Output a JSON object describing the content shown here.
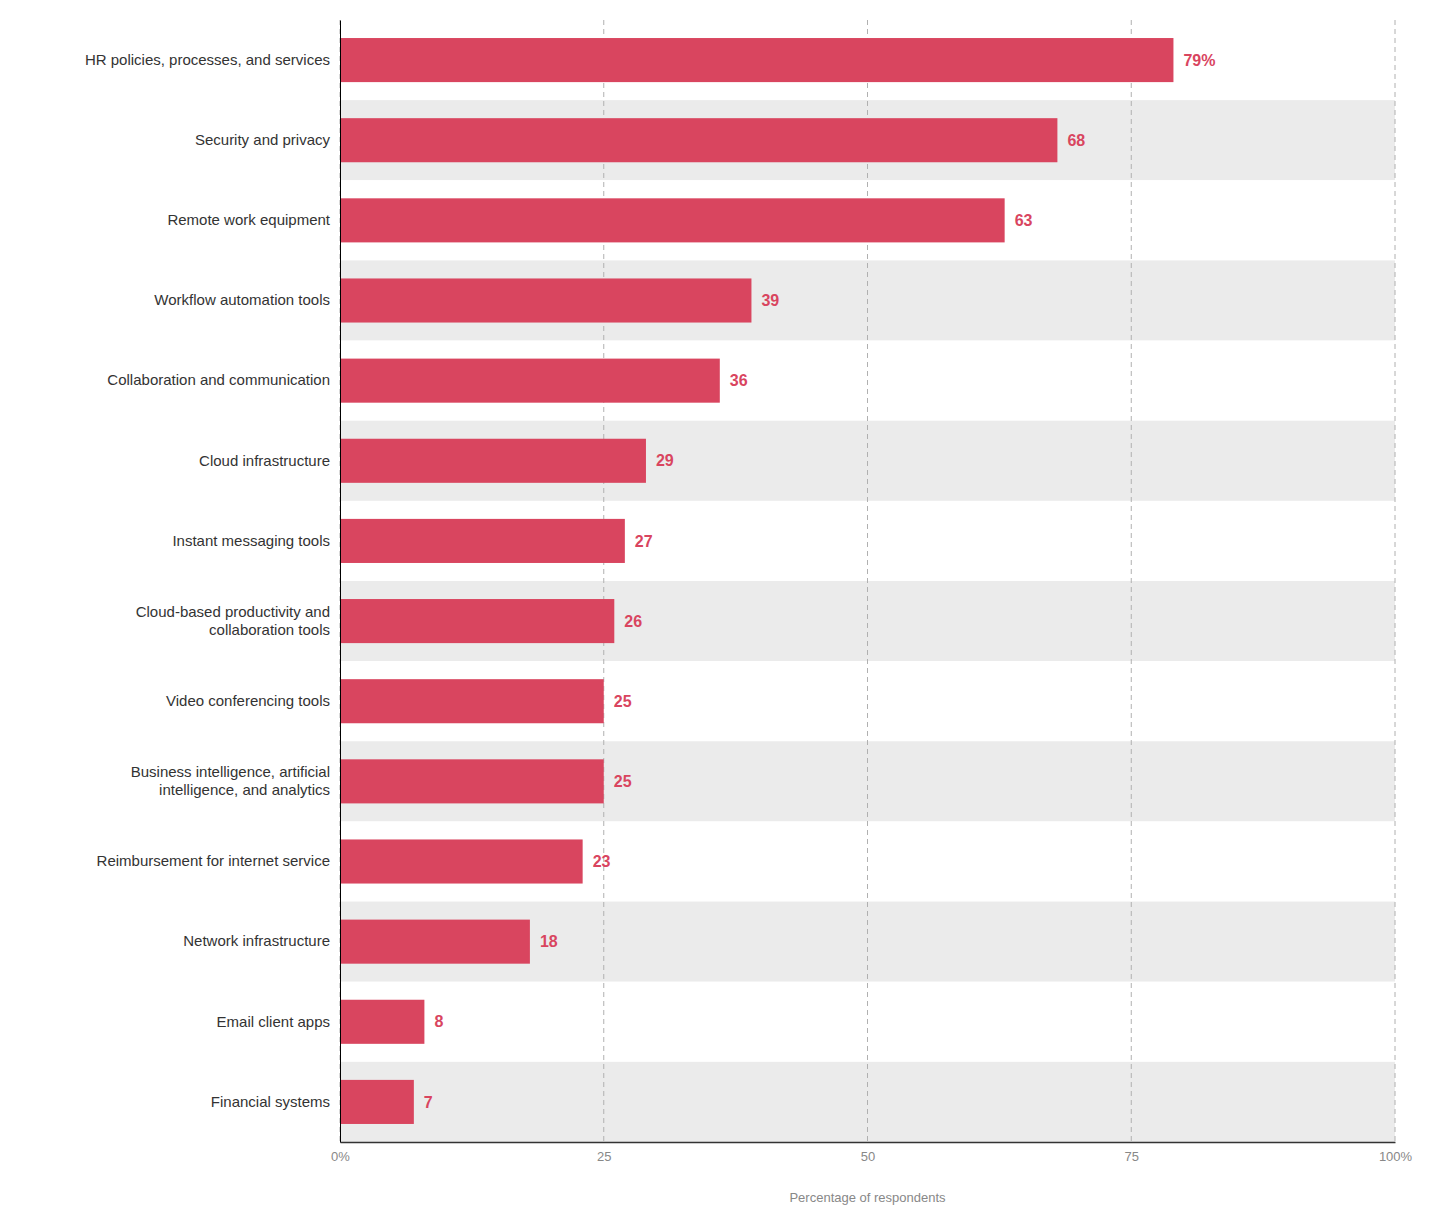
{
  "chart_data": {
    "type": "bar",
    "orientation": "horizontal",
    "categories": [
      "HR policies, processes, and services",
      "Security and privacy",
      "Remote work equipment",
      "Workflow automation tools",
      "Collaboration and communication",
      "Cloud infrastructure",
      "Instant messaging tools",
      "Cloud-based productivity and\ncollaboration tools",
      "Video conferencing tools",
      "Business intelligence, artificial\nintelligence, and analytics",
      "Reimbursement for internet service",
      "Network infrastructure",
      "Email client apps",
      "Financial systems"
    ],
    "values": [
      79,
      68,
      63,
      39,
      36,
      29,
      27,
      26,
      25,
      25,
      23,
      18,
      8,
      7
    ],
    "value_labels": [
      "79%",
      "68",
      "63",
      "39",
      "36",
      "29",
      "27",
      "26",
      "25",
      "25",
      "23",
      "18",
      "8",
      "7"
    ],
    "data_labels": true,
    "color": "#d9455f",
    "xlabel": "Percentage of respondents",
    "xlim": [
      0,
      100
    ],
    "xticks": [
      {
        "value": 0,
        "label": "0%"
      },
      25,
      50,
      75,
      {
        "value": 100,
        "label": "100%"
      }
    ],
    "grid": true
  }
}
